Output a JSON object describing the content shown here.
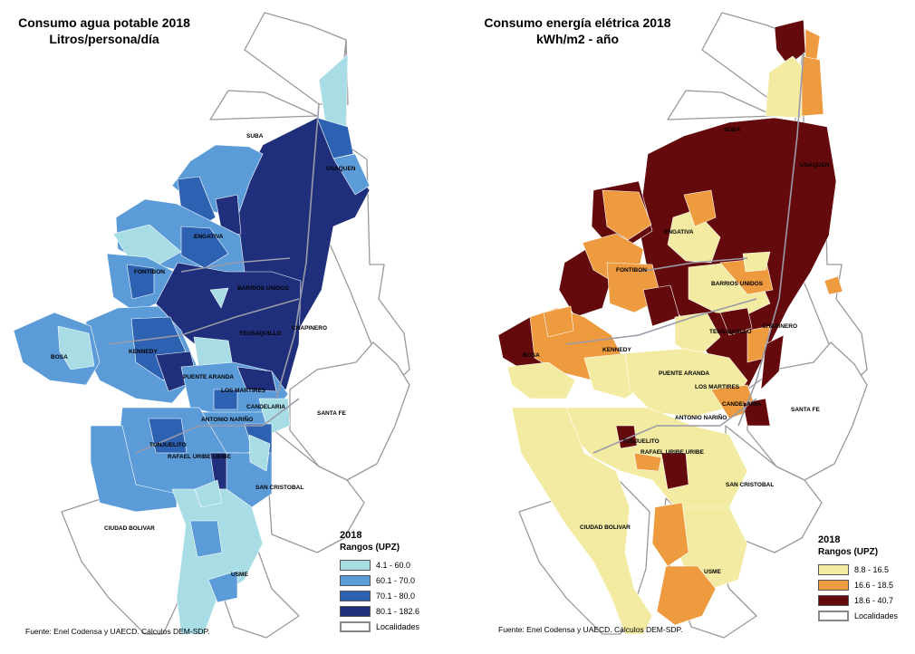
{
  "colors": {
    "water": [
      "#a8dde6",
      "#5b9bd8",
      "#2d62b3",
      "#1f2f7c"
    ],
    "energy": [
      "#f3eba1",
      "#ee9a3e",
      "#650a0c"
    ],
    "localidad_outline": "#999999",
    "upz_line": "#5a6a9a"
  },
  "maps": [
    {
      "title_line1": "Consumo agua potable 2018",
      "title_line2": "Litros/persona/día",
      "legend": {
        "year": "2018",
        "subtitle": "Rangos (UPZ)",
        "items": [
          {
            "label": "4.1 - 60.0",
            "color": "#a8dde6"
          },
          {
            "label": "60.1 - 70.0",
            "color": "#5b9bd8"
          },
          {
            "label": "70.1 - 80.0",
            "color": "#2d62b3"
          },
          {
            "label": "80.1 - 182.6",
            "color": "#1f2f7c"
          }
        ],
        "outline_label": "Localidades"
      },
      "source": "Fuente: Enel Codensa y UAECD. Cálculos DEM-SDP.",
      "localidades": [
        "SUBA",
        "USAQUEN",
        "ENGATIVA",
        "FONTIBON",
        "BARRIOS UNIDOS",
        "CHAPINERO",
        "TEUSAQUILLO",
        "KENNEDY",
        "BOSA",
        "PUENTE ARANDA",
        "LOS MARTIRES",
        "CANDELARIA",
        "SANTA FE",
        "ANTONIO NARIÑO",
        "TUNJUELITO",
        "RAFAEL URIBE URIBE",
        "SAN CRISTOBAL",
        "CIUDAD BOLIVAR",
        "USME"
      ]
    },
    {
      "title_line1": "Consumo energía elétrica 2018",
      "title_line2": "kWh/m2 - año",
      "legend": {
        "year": "2018",
        "subtitle": "Rangos (UPZ)",
        "items": [
          {
            "label": "8.8 - 16.5",
            "color": "#f3eba1"
          },
          {
            "label": "16.6 - 18.5",
            "color": "#ee9a3e"
          },
          {
            "label": "18.6 - 40.7",
            "color": "#650a0c"
          }
        ],
        "outline_label": "Localidades"
      },
      "source": "Fuente: Enel Codensa y UAECD. Cálculos DEM-SDP.",
      "localidades": [
        "SUBA",
        "USAQUEN",
        "ENGATIVA",
        "FONTIBON",
        "BARRIOS UNIDOS",
        "CHAPINERO",
        "TEUSAQUILLO",
        "KENNEDY",
        "BOSA",
        "PUENTE ARANDA",
        "LOS MARTIRES",
        "CANDELARIA",
        "SANTA FE",
        "ANTONIO NARIÑO",
        "TUNJUELITO",
        "RAFAEL URIBE URIBE",
        "SAN CRISTOBAL",
        "CIUDAD BOLIVAR",
        "USME"
      ]
    }
  ]
}
